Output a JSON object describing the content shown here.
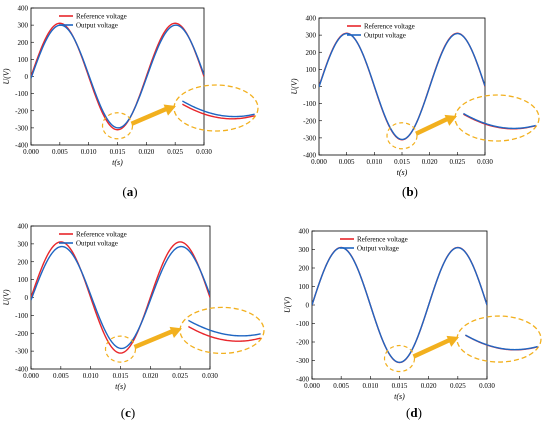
{
  "chart_data": [
    {
      "type": "line",
      "panel": "a",
      "caption": "(a)",
      "xlabel": "t(s)",
      "ylabel": "U(V)",
      "xlim": [
        0,
        0.03
      ],
      "ylim": [
        -400,
        400
      ],
      "x_ticks": [
        "0.000",
        "0.005",
        "0.010",
        "0.015",
        "0.020",
        "0.025",
        "0.030"
      ],
      "y_ticks": [
        "-400",
        "-300",
        "-200",
        "-100",
        "0",
        "100",
        "200",
        "300",
        "400"
      ],
      "legend_position": "top-left",
      "series": [
        {
          "name": "Reference voltage",
          "color": "#e8262b",
          "amplitude": 311,
          "frequency_hz": 50,
          "phase_deg": 0
        },
        {
          "name": "Output voltage",
          "color": "#1f66c2",
          "amplitude": 300,
          "frequency_hz": 50,
          "phase_deg": -2
        }
      ],
      "zoom": {
        "x_range": [
          0.0135,
          0.0165
        ],
        "note": "enlarged view near the negative peak"
      }
    },
    {
      "type": "line",
      "panel": "b",
      "caption": "(b)",
      "xlabel": "t(s)",
      "ylabel": "U(V)",
      "xlim": [
        0,
        0.03
      ],
      "ylim": [
        -400,
        400
      ],
      "x_ticks": [
        "0.000",
        "0.005",
        "0.010",
        "0.015",
        "0.020",
        "0.025",
        "0.030"
      ],
      "y_ticks": [
        "-400",
        "-300",
        "-200",
        "-100",
        "0",
        "100",
        "200",
        "300",
        "400"
      ],
      "legend_position": "top-left",
      "series": [
        {
          "name": "Reference voltage",
          "color": "#e8262b",
          "amplitude": 311,
          "frequency_hz": 50,
          "phase_deg": 0
        },
        {
          "name": "Output voltage",
          "color": "#1f66c2",
          "amplitude": 309,
          "frequency_hz": 50,
          "phase_deg": -0.5
        }
      ],
      "zoom": {
        "x_range": [
          0.0135,
          0.0165
        ],
        "note": "enlarged view near the negative peak"
      }
    },
    {
      "type": "line",
      "panel": "c",
      "caption": "(c)",
      "xlabel": "t(s)",
      "ylabel": "U(V)",
      "xlim": [
        0,
        0.03
      ],
      "ylim": [
        -400,
        400
      ],
      "x_ticks": [
        "0.000",
        "0.005",
        "0.010",
        "0.015",
        "0.020",
        "0.025",
        "0.030"
      ],
      "y_ticks": [
        "-400",
        "-300",
        "-200",
        "-100",
        "0",
        "100",
        "200",
        "300",
        "400"
      ],
      "legend_position": "top-left",
      "series": [
        {
          "name": "Reference voltage",
          "color": "#e8262b",
          "amplitude": 311,
          "frequency_hz": 50,
          "phase_deg": 0
        },
        {
          "name": "Output voltage",
          "color": "#1f66c2",
          "amplitude": 285,
          "frequency_hz": 50,
          "phase_deg": -3
        }
      ],
      "zoom": {
        "x_range": [
          0.0135,
          0.0165
        ],
        "note": "enlarged view near the negative peak"
      }
    },
    {
      "type": "line",
      "panel": "d",
      "caption": "(d)",
      "xlabel": "t(s)",
      "ylabel": "U(V)",
      "xlim": [
        0,
        0.03
      ],
      "ylim": [
        -400,
        400
      ],
      "x_ticks": [
        "0.000",
        "0.005",
        "0.010",
        "0.015",
        "0.020",
        "0.025",
        "0.030"
      ],
      "y_ticks": [
        "-400",
        "-300",
        "-200",
        "-100",
        "0",
        "100",
        "200",
        "300",
        "400"
      ],
      "legend_position": "top-left",
      "series": [
        {
          "name": "Reference voltage",
          "color": "#e8262b",
          "amplitude": 311,
          "frequency_hz": 50,
          "phase_deg": 0
        },
        {
          "name": "Output voltage",
          "color": "#1f66c2",
          "amplitude": 310,
          "frequency_hz": 50,
          "phase_deg": 0
        }
      ],
      "zoom": {
        "x_range": [
          0.0135,
          0.0165
        ],
        "note": "enlarged view near the negative peak"
      }
    }
  ],
  "style": {
    "highlight_color": "#f2b01e",
    "axis_color": "#000000"
  }
}
